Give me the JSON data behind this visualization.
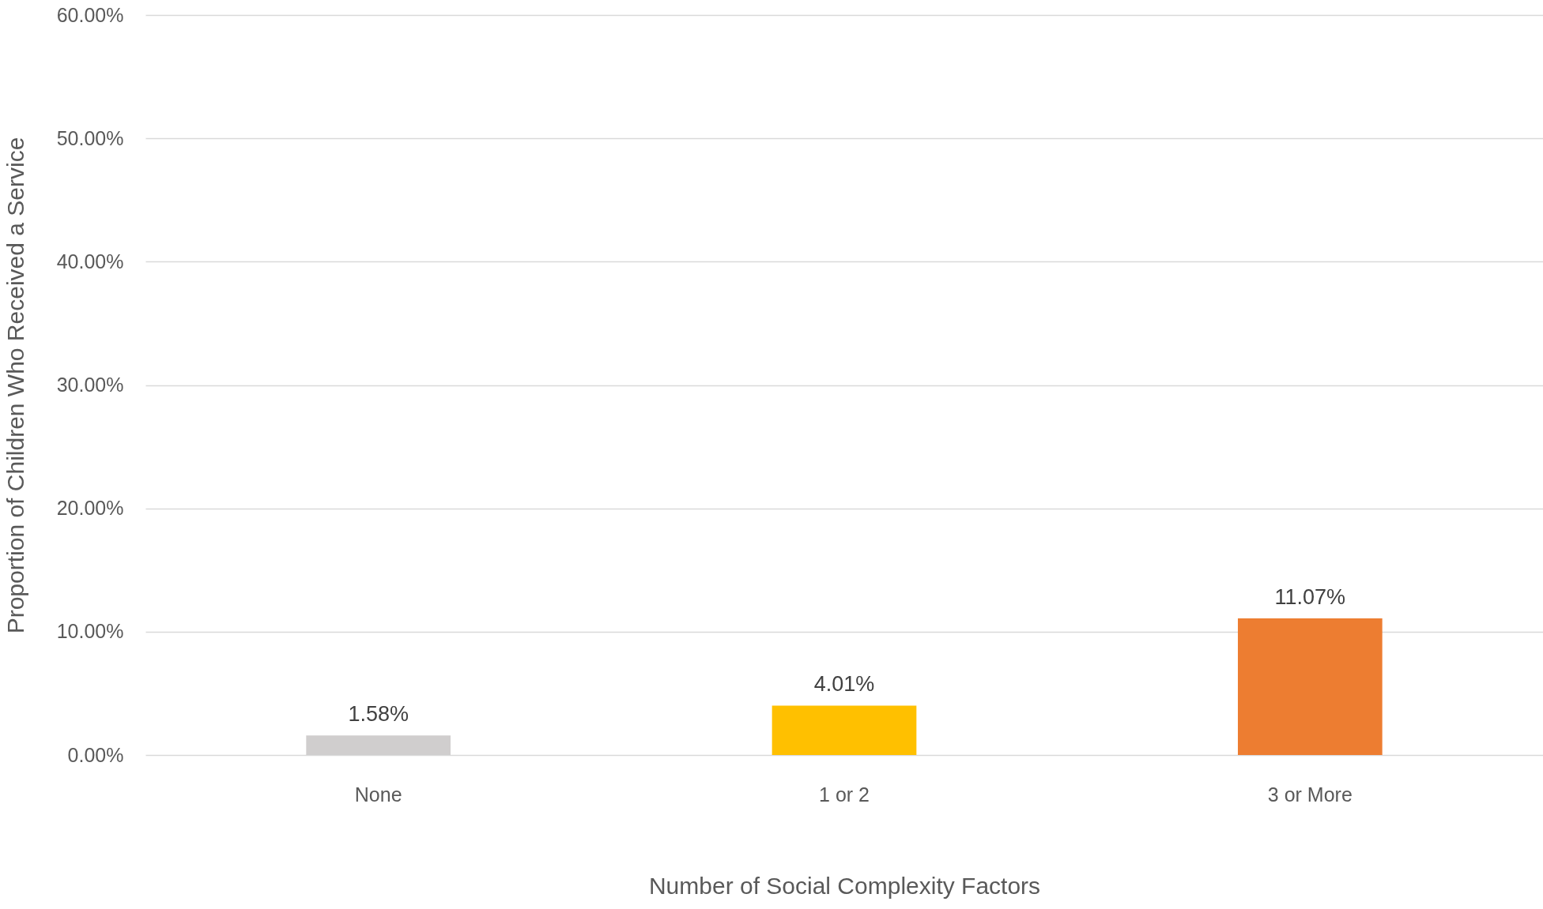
{
  "chart_data": {
    "type": "bar",
    "xlabel": "Number of Social Complexity Factors",
    "ylabel": "Proportion of Children Who Received a Service",
    "categories": [
      "None",
      "1 or 2",
      "3 or More"
    ],
    "values": [
      1.58,
      4.01,
      11.07
    ],
    "colors": [
      "#d0cece",
      "#ffc000",
      "#ed7d31"
    ],
    "value_labels": [
      "1.58%",
      "4.01%",
      "11.07%"
    ],
    "ylim": [
      0,
      60
    ],
    "yticks": [
      {
        "value": 0,
        "label": "0.00%"
      },
      {
        "value": 10,
        "label": "10.00%"
      },
      {
        "value": 20,
        "label": "20.00%"
      },
      {
        "value": 30,
        "label": "30.00%"
      },
      {
        "value": 40,
        "label": "40.00%"
      },
      {
        "value": 50,
        "label": "50.00%"
      },
      {
        "value": 60,
        "label": "60.00%"
      }
    ],
    "grid": "y"
  }
}
